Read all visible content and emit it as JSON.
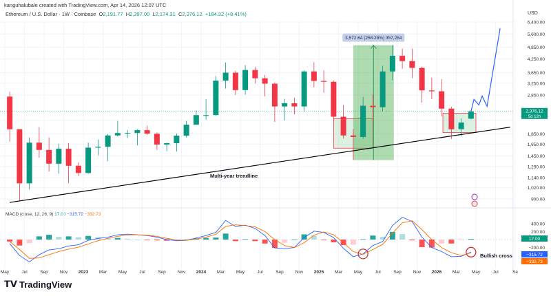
{
  "header": {
    "credit": "kanguhalubale created with TradingView.com, Apr 14, 2026 12:07 UTC",
    "symbol": "Ethereum / U.S. Dollar · 1W · Coinbase",
    "open_label": "O",
    "open": "2,191.77",
    "high_label": "H",
    "high": "2,397.00",
    "low_label": "L",
    "low": "2,174.31",
    "close_label": "C",
    "close": "2,376.12",
    "change": "+184.32 (+8.41%)",
    "currency": "USD"
  },
  "price_badge": {
    "value": "2,376.12",
    "countdown": "5d 12h"
  },
  "macd": {
    "title": "MACD (close, 12, 26, 9)",
    "hist": "17.00",
    "macd": "−315.72",
    "signal": "−332.73",
    "axis_labels": [
      "400.00",
      "200.00",
      "−200.00"
    ]
  },
  "annotations": {
    "trendline": "Multi-year trendline",
    "measure": "3,572.64 (258.28%) 357,264",
    "bullish_cross": "Bullish cross"
  },
  "branding": {
    "logo": "TradingView"
  },
  "colors": {
    "up": "#089981",
    "down": "#f23645",
    "macd": "#2962ff",
    "signal": "#ff6d00",
    "projection": "#2962ff"
  },
  "chart_data": [
    {
      "type": "candlestick",
      "scale": "log",
      "yticks": [
        "6,400.00",
        "5,600.00",
        "4,850.00",
        "4,250.00",
        "3,650.00",
        "3,250.00",
        "2,850.00",
        "2,150.00",
        "1,850.00",
        "1,650.00",
        "1,450.00",
        "1,290.00",
        "1,140.00",
        "1,020.00",
        "900.00"
      ],
      "xticks": [
        "May",
        "Jul",
        "Sep",
        "Nov",
        "2023",
        "Mar",
        "May",
        "Jul",
        "Sep",
        "Nov",
        "2024",
        "Mar",
        "May",
        "Jul",
        "Sep",
        "Nov",
        "2025",
        "Mar",
        "May",
        "Jul",
        "Sep",
        "Nov",
        "2026",
        "Mar",
        "May",
        "Jul",
        "Se"
      ],
      "grid": true,
      "candles": [
        [
          "2022-05",
          2800,
          2950,
          1700,
          1950
        ],
        [
          "2022-06",
          1950,
          1950,
          880,
          1070
        ],
        [
          "2022-07",
          1070,
          1780,
          1000,
          1680
        ],
        [
          "2022-08",
          1680,
          2000,
          1420,
          1550
        ],
        [
          "2022-09",
          1550,
          1780,
          1220,
          1330
        ],
        [
          "2022-10",
          1330,
          1660,
          1190,
          1570
        ],
        [
          "2022-11",
          1570,
          1670,
          1070,
          1300
        ],
        [
          "2022-12",
          1300,
          1350,
          1160,
          1200
        ],
        [
          "2023-01",
          1200,
          1680,
          1190,
          1590
        ],
        [
          "2023-02",
          1590,
          1740,
          1460,
          1605
        ],
        [
          "2023-03",
          1605,
          1850,
          1370,
          1820
        ],
        [
          "2023-04",
          1820,
          2140,
          1800,
          1870
        ],
        [
          "2023-05",
          1870,
          1930,
          1770,
          1870
        ],
        [
          "2023-06",
          1870,
          1950,
          1630,
          1930
        ],
        [
          "2023-07",
          1930,
          2030,
          1830,
          1855
        ],
        [
          "2023-08",
          1855,
          1880,
          1550,
          1645
        ],
        [
          "2023-09",
          1645,
          1680,
          1530,
          1670
        ],
        [
          "2023-10",
          1670,
          1860,
          1520,
          1815
        ],
        [
          "2023-11",
          1815,
          2140,
          1780,
          2050
        ],
        [
          "2023-12",
          2050,
          2400,
          2080,
          2280
        ],
        [
          "2024-01",
          2280,
          2720,
          2170,
          2280
        ],
        [
          "2024-02",
          2280,
          3520,
          2270,
          3340
        ],
        [
          "2024-03",
          3340,
          4090,
          3060,
          3650
        ],
        [
          "2024-04",
          3650,
          3730,
          2850,
          3010
        ],
        [
          "2024-05",
          3010,
          3970,
          2860,
          3760
        ],
        [
          "2024-06",
          3760,
          3890,
          3240,
          3430
        ],
        [
          "2024-07",
          3430,
          3560,
          2810,
          3230
        ],
        [
          "2024-08",
          3230,
          3280,
          2110,
          2510
        ],
        [
          "2024-09",
          2510,
          2730,
          2150,
          2600
        ],
        [
          "2024-10",
          2600,
          2770,
          2300,
          2510
        ],
        [
          "2024-11",
          2510,
          3740,
          2360,
          3700
        ],
        [
          "2024-12",
          3700,
          4100,
          3100,
          3330
        ],
        [
          "2025-01",
          3330,
          3740,
          2920,
          3300
        ],
        [
          "2025-02",
          3300,
          3340,
          2120,
          2240
        ],
        [
          "2025-03",
          2240,
          2550,
          1760,
          1820
        ],
        [
          "2025-04",
          1820,
          1955,
          1385,
          1790
        ],
        [
          "2025-05",
          1790,
          2790,
          1750,
          2530
        ],
        [
          "2025-06",
          2530,
          2880,
          2110,
          2490
        ],
        [
          "2025-07",
          2490,
          3940,
          2370,
          3700
        ],
        [
          "2025-08",
          3700,
          4950,
          3350,
          4400
        ],
        [
          "2025-09",
          4400,
          4770,
          3820,
          4150
        ],
        [
          "2025-10",
          4150,
          4760,
          3440,
          3850
        ],
        [
          "2025-11",
          3850,
          3900,
          2620,
          3000
        ],
        [
          "2025-12",
          3000,
          3450,
          2720,
          2970
        ],
        [
          "2026-01",
          2970,
          3400,
          2250,
          2450
        ],
        [
          "2026-02",
          2450,
          2500,
          1750,
          1950
        ],
        [
          "2026-03",
          1950,
          2200,
          1800,
          2100
        ],
        [
          "2026-04",
          2191.77,
          2397,
          2174.31,
          2376.12
        ]
      ],
      "trendline": [
        [
          "2022-05",
          866
        ],
        [
          "2026-08",
          1996
        ]
      ],
      "projection": [
        [
          "2026-04",
          2376
        ],
        [
          "2026-04-25",
          2714
        ],
        [
          "2026-05-10",
          2552
        ],
        [
          "2026-05-20",
          2818
        ],
        [
          "2026-06-05",
          2513
        ],
        [
          "2026-07-15",
          5970
        ]
      ],
      "zones": [
        {
          "kind": "support",
          "from": "2025-02",
          "to": "2025-06",
          "low": 1580,
          "high": 2190
        },
        {
          "kind": "measure",
          "from": "2025-04",
          "to": "2025-08-20",
          "low": 1385,
          "high": 4950
        },
        {
          "kind": "support",
          "from": "2026-01-20",
          "to": "2026-05-01",
          "low": 1880,
          "high": 2330
        }
      ]
    },
    {
      "type": "macd",
      "months": [
        "2022-05",
        "2022-06",
        "2022-07",
        "2022-08",
        "2022-09",
        "2022-10",
        "2022-11",
        "2022-12",
        "2023-01",
        "2023-02",
        "2023-03",
        "2023-04",
        "2023-05",
        "2023-06",
        "2023-07",
        "2023-08",
        "2023-09",
        "2023-10",
        "2023-11",
        "2023-12",
        "2024-01",
        "2024-02",
        "2024-03",
        "2024-04",
        "2024-05",
        "2024-06",
        "2024-07",
        "2024-08",
        "2024-09",
        "2024-10",
        "2024-11",
        "2024-12",
        "2025-01",
        "2025-02",
        "2025-03",
        "2025-04",
        "2025-05",
        "2025-06",
        "2025-07",
        "2025-08",
        "2025-09",
        "2025-10",
        "2025-11",
        "2025-12",
        "2026-01",
        "2026-02",
        "2026-03",
        "2026-04"
      ],
      "macd": [
        -100,
        -400,
        -560,
        -380,
        -260,
        -230,
        -160,
        -130,
        -20,
        30,
        60,
        120,
        135,
        120,
        100,
        60,
        0,
        -30,
        -20,
        40,
        100,
        180,
        480,
        330,
        360,
        280,
        100,
        -210,
        -230,
        -200,
        50,
        210,
        180,
        50,
        -220,
        -430,
        -360,
        -150,
        -50,
        350,
        560,
        450,
        60,
        -200,
        -300,
        -430,
        -420,
        -315.72
      ],
      "signal": [
        -50,
        -250,
        -470,
        -460,
        -380,
        -300,
        -240,
        -190,
        -110,
        -30,
        30,
        80,
        115,
        120,
        110,
        80,
        30,
        -10,
        -20,
        10,
        60,
        130,
        330,
        370,
        350,
        320,
        200,
        0,
        -150,
        -200,
        -80,
        110,
        190,
        120,
        -80,
        -300,
        -370,
        -250,
        -120,
        160,
        420,
        470,
        250,
        0,
        -200,
        -330,
        -400,
        -332.73
      ],
      "crosses": [
        "2025-05",
        "2026-04"
      ]
    }
  ]
}
